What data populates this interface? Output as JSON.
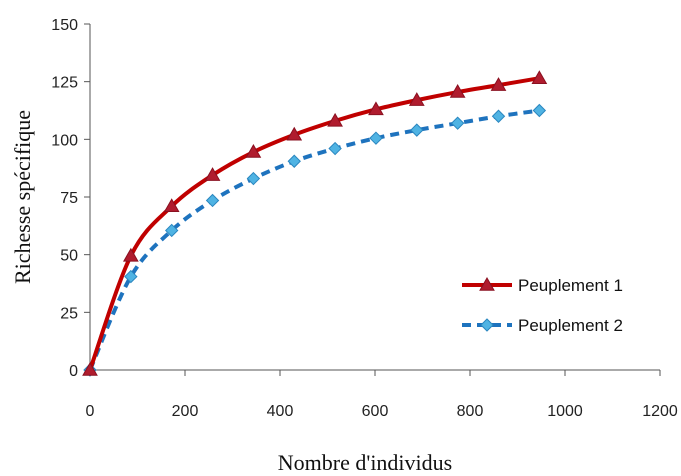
{
  "chart_data": {
    "type": "line",
    "xlabel": "Nombre d'individus",
    "ylabel": "Richesse spécifique",
    "xlim": [
      0,
      1200
    ],
    "ylim": [
      0,
      150
    ],
    "xticks": [
      0,
      200,
      400,
      600,
      800,
      1000,
      1200
    ],
    "yticks": [
      0,
      25,
      50,
      75,
      100,
      125,
      150
    ],
    "grid": false,
    "legend_position": "bottom-right",
    "series": [
      {
        "name": "Peuplement 1",
        "color": "#c00000",
        "line_style": "solid",
        "marker": "triangle",
        "marker_color": "#b01c2e",
        "x": [
          0,
          86,
          172,
          258,
          344,
          430,
          516,
          602,
          688,
          774,
          860,
          946
        ],
        "y": [
          0,
          49.5,
          71,
          84.5,
          94.5,
          102,
          108,
          113,
          117,
          120.5,
          123.5,
          126.5
        ]
      },
      {
        "name": "Peuplement 2",
        "color": "#1e73be",
        "line_style": "dashed",
        "marker": "diamond",
        "marker_color": "#4fb3e3",
        "x": [
          0,
          86,
          172,
          258,
          344,
          430,
          516,
          602,
          688,
          774,
          860,
          946
        ],
        "y": [
          0,
          40.5,
          60.5,
          73.5,
          83,
          90.5,
          96,
          100.5,
          104,
          107,
          110,
          112.5
        ]
      }
    ]
  }
}
